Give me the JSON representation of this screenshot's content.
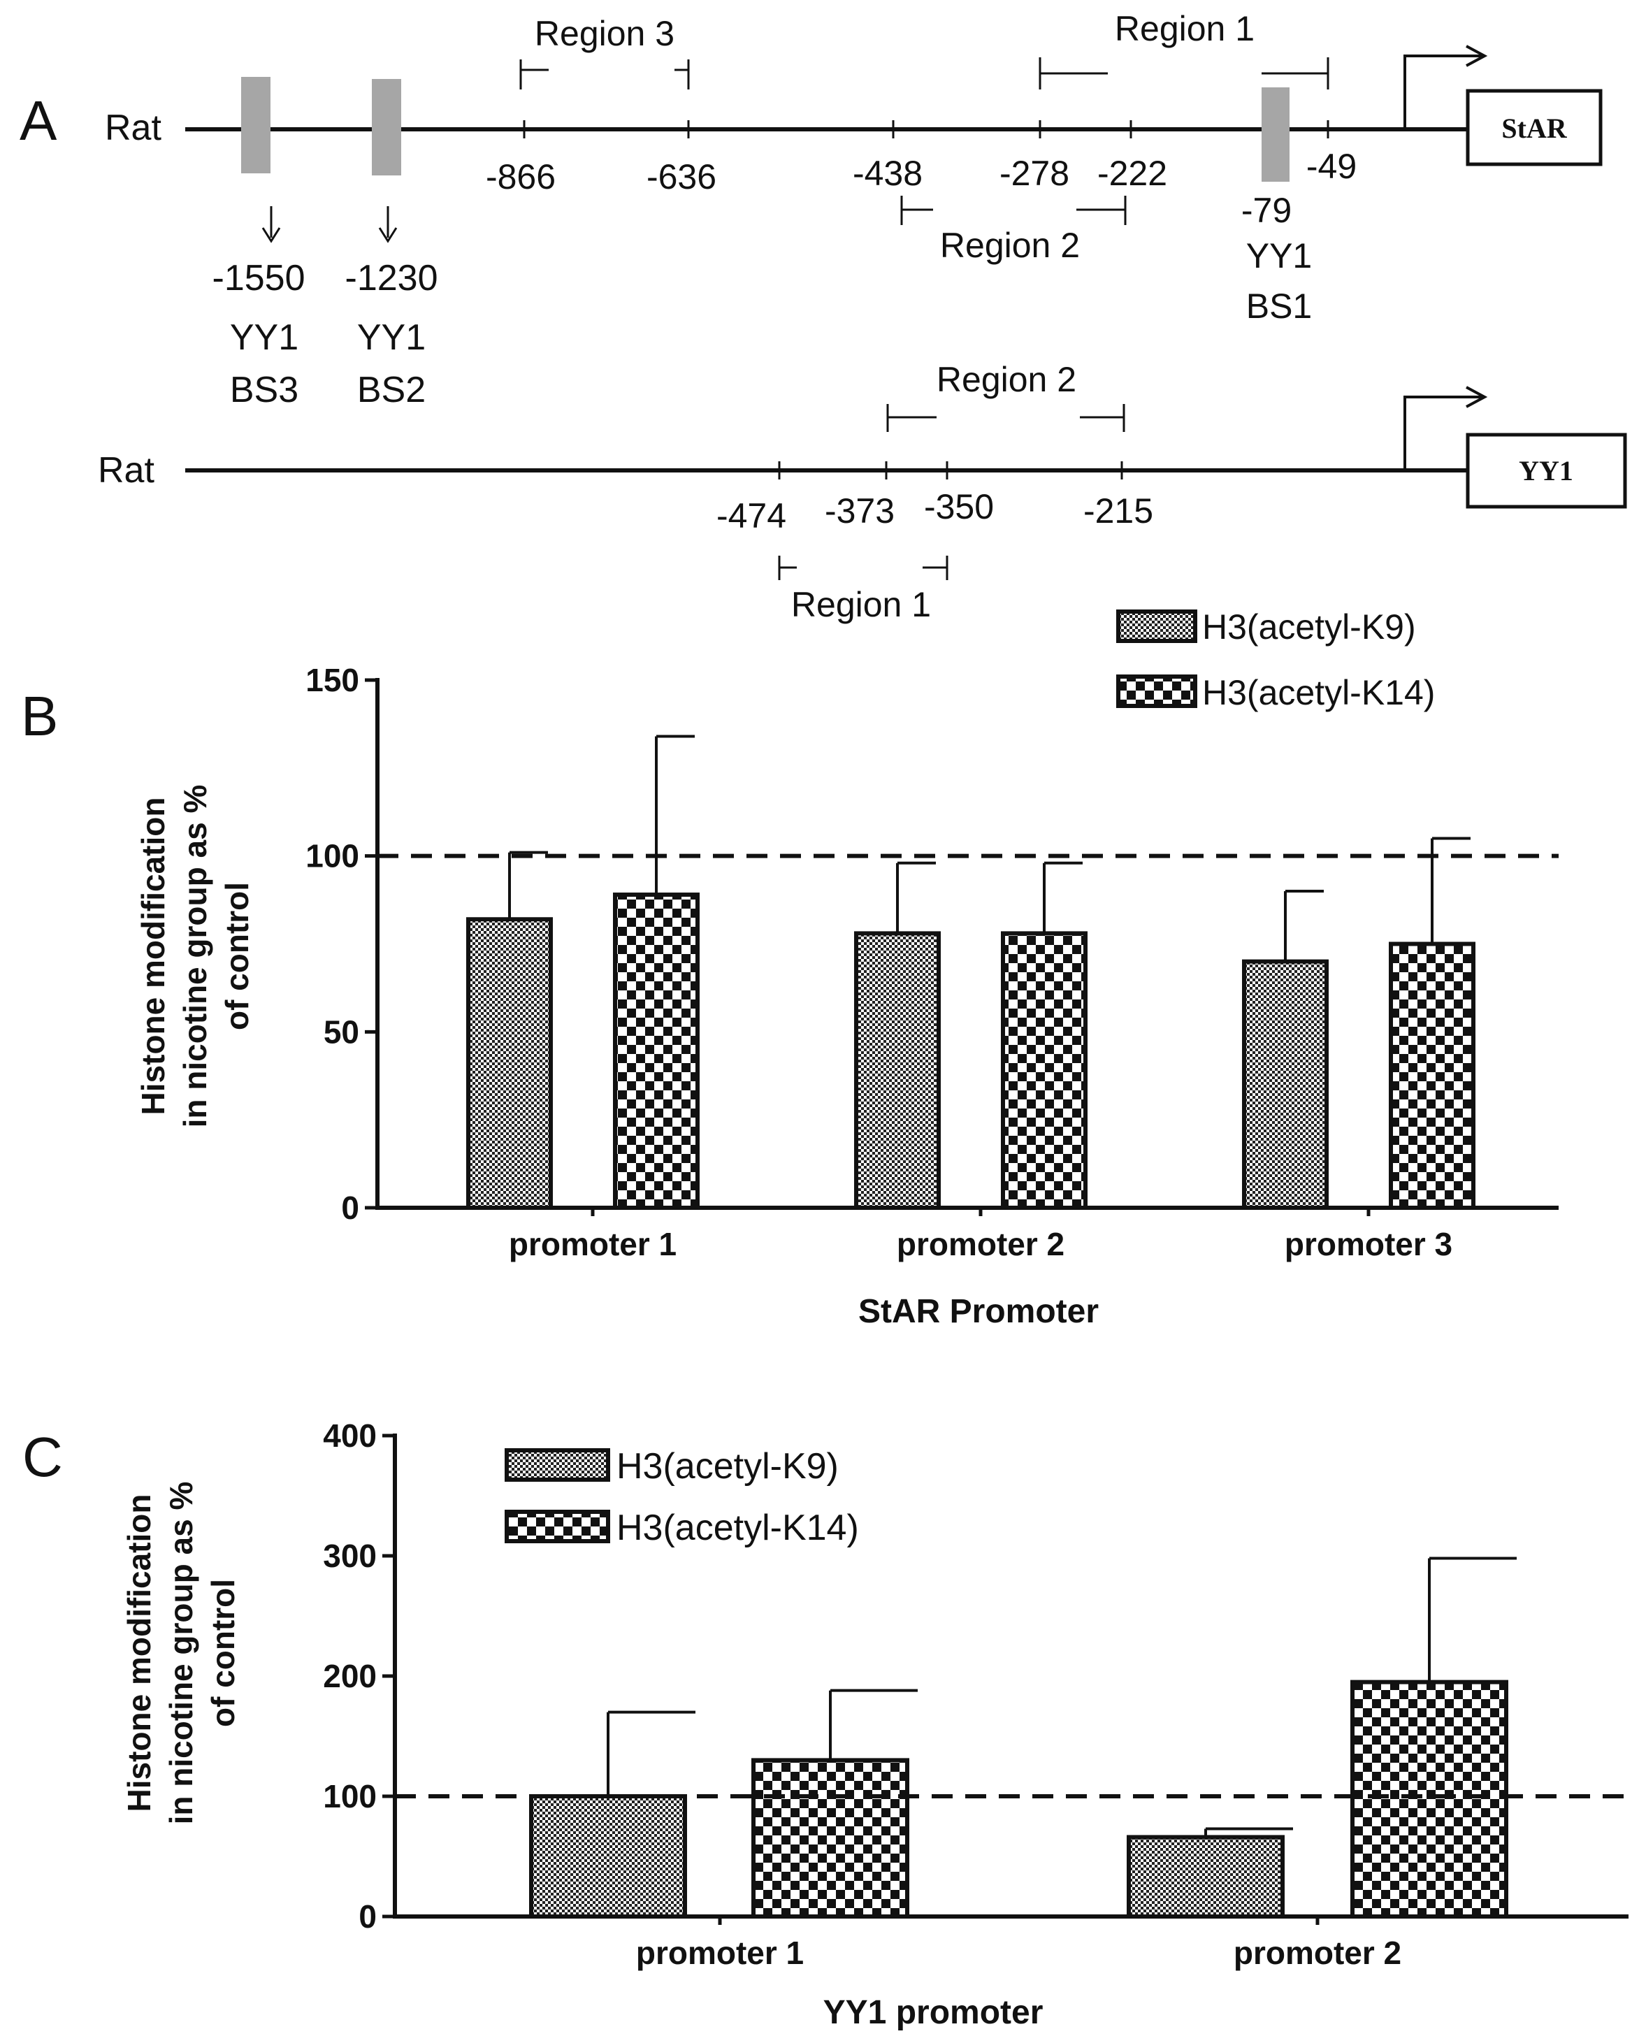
{
  "panel_a": {
    "panel_label": "A",
    "star_gene": {
      "species_label": "Rat",
      "gene_label": "StAR",
      "regions": [
        {
          "name": "Region 1",
          "start": -278,
          "end": -49
        },
        {
          "name": "Region 2",
          "start": -438,
          "end": -222
        },
        {
          "name": "Region 3",
          "start": -866,
          "end": -636
        }
      ],
      "position_labels": [
        "-866",
        "-636",
        "-438",
        "-278",
        "-222",
        "-49"
      ],
      "binding_sites": [
        {
          "position": "-1550",
          "name": "YY1",
          "site": "BS3"
        },
        {
          "position": "-1230",
          "name": "YY1",
          "site": "BS2"
        },
        {
          "position": "-79",
          "name": "YY1",
          "site": "BS1"
        }
      ]
    },
    "yy1_gene": {
      "species_label": "Rat",
      "gene_label": "YY1",
      "regions": [
        {
          "name": "Region 1",
          "start": -474,
          "end": -350
        },
        {
          "name": "Region 2",
          "start": -373,
          "end": -215
        }
      ],
      "position_labels": [
        "-474",
        "-373",
        "-350",
        "-215"
      ]
    }
  },
  "chart_data": [
    {
      "panel_label": "B",
      "type": "bar",
      "title": "",
      "xlabel": "StAR Promoter",
      "ylabel_lines": [
        "Histone modification",
        "in nicotine group as %",
        "of control"
      ],
      "ylim": [
        0,
        150
      ],
      "yticks": [
        "0",
        "50",
        "100",
        "150"
      ],
      "reference_line": 100,
      "categories": [
        "promoter 1",
        "promoter 2",
        "promoter 3"
      ],
      "series": [
        {
          "name": "H3(acetyl-K9)",
          "pattern": "fine",
          "values": [
            82,
            78,
            70
          ],
          "errors": [
            19,
            20,
            20
          ]
        },
        {
          "name": "H3(acetyl-K14)",
          "pattern": "coarse",
          "values": [
            89,
            78,
            75
          ],
          "errors": [
            45,
            20,
            30
          ]
        }
      ],
      "legend": "top-right"
    },
    {
      "panel_label": "C",
      "type": "bar",
      "title": "",
      "xlabel": "YY1 promoter",
      "ylabel_lines": [
        "Histone modification",
        "in nicotine group as %",
        "of control"
      ],
      "ylim": [
        0,
        400
      ],
      "yticks": [
        "0",
        "100",
        "200",
        "300",
        "400"
      ],
      "reference_line": 100,
      "categories": [
        "promoter 1",
        "promoter 2"
      ],
      "series": [
        {
          "name": "H3(acetyl-K9)",
          "pattern": "fine",
          "values": [
            100,
            66
          ],
          "errors": [
            70,
            7
          ]
        },
        {
          "name": "H3(acetyl-K14)",
          "pattern": "coarse",
          "values": [
            130,
            195
          ],
          "errors": [
            58,
            103
          ]
        }
      ],
      "legend": "top-left"
    }
  ],
  "colors": {
    "ink": "#111111",
    "marker_gray": "#a6a6a6",
    "background": "#ffffff"
  }
}
